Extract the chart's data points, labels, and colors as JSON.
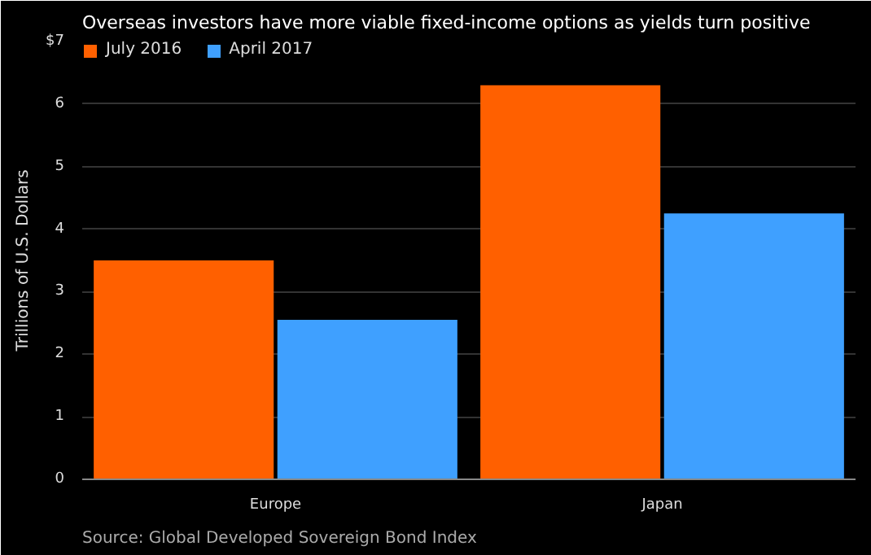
{
  "chart_data": {
    "type": "bar",
    "title": "Overseas investors have more viable fixed-income options as yields turn positive",
    "ylabel": "Trillions of U.S. Dollars",
    "categories": [
      "Europe",
      "Japan"
    ],
    "series": [
      {
        "name": "July 2016",
        "color": "#ff6000",
        "values": [
          3.5,
          6.3
        ]
      },
      {
        "name": "April 2017",
        "color": "#3fa0ff",
        "values": [
          2.55,
          4.25
        ]
      }
    ],
    "ylim": [
      0,
      7
    ],
    "yticks": [
      0,
      1,
      2,
      3,
      4,
      5,
      6,
      {
        "value": 7,
        "label": "$7"
      }
    ],
    "grid": "y",
    "legend": "top left",
    "annotations": [
      "Source: Global Developed Sovereign Bond Index"
    ]
  }
}
